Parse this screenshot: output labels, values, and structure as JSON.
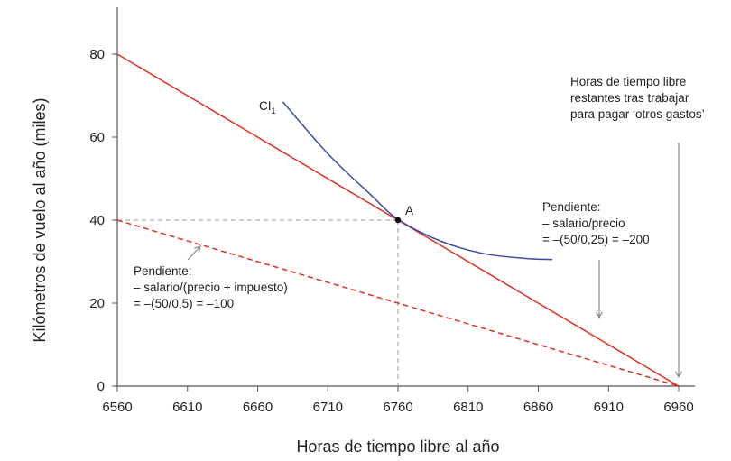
{
  "chart_data": {
    "type": "line",
    "xlabel": "Horas de tiempo libre al año",
    "ylabel": "Kilómetros de vuelo al año (miles)",
    "xlim": [
      6560,
      6960
    ],
    "ylim": [
      0,
      80
    ],
    "x_ticks": [
      "6560",
      "6610",
      "6660",
      "6710",
      "6760",
      "6810",
      "6860",
      "6910",
      "6960"
    ],
    "y_ticks": [
      "0",
      "20",
      "40",
      "60",
      "80"
    ],
    "grid": false,
    "series": [
      {
        "style": "solid",
        "color": "#e0301e",
        "x": [
          6560,
          6960
        ],
        "y": [
          80,
          0
        ]
      },
      {
        "style": "dashed",
        "color": "#e0301e",
        "x": [
          6560,
          6960
        ],
        "y": [
          40,
          0
        ]
      },
      {
        "name": "CI1",
        "style": "solid",
        "color": "#3b4ba8",
        "x": [
          6678,
          6710,
          6740,
          6760,
          6790,
          6820,
          6850,
          6870
        ],
        "y": [
          68.5,
          56,
          46.3,
          40.2,
          35,
          32,
          30.8,
          30.5
        ]
      }
    ],
    "point": {
      "label": "A",
      "x": 6760,
      "y": 40
    },
    "curve_label": {
      "main": "CI",
      "sub": "1"
    },
    "annotations": {
      "right_top": [
        "Horas de tiempo libre",
        "restantes tras trabajar",
        "para pagar ‘otros gastos’"
      ],
      "right_mid": [
        "Pendiente:",
        "– salario/precio",
        "= –(50/0,25) = –200"
      ],
      "left": [
        "Pendiente:",
        "– salario/(precio + impuesto)",
        "= –(50/0,5) = –100"
      ]
    }
  }
}
